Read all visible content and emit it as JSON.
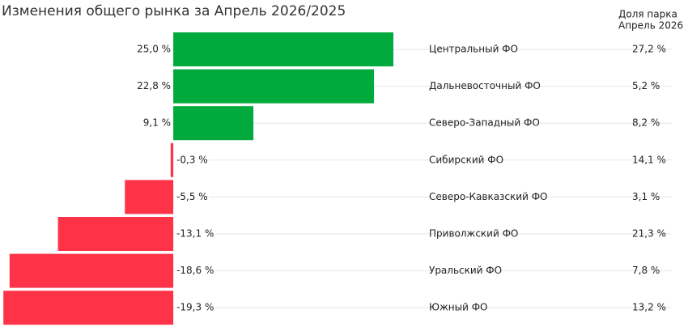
{
  "chart_data": {
    "type": "bar",
    "orientation": "horizontal",
    "title": "Изменения общего рынка за Апрель 2026/2025",
    "categories": [
      "Центральный ФО",
      "Дальневосточный ФО",
      "Северо-Западный ФО",
      "Сибирский ФО",
      "Северо-Кавказский ФО",
      "Приволжский ФО",
      "Уральский ФО",
      "Южный ФО"
    ],
    "values": [
      25.0,
      22.8,
      9.1,
      -0.3,
      -5.5,
      -13.1,
      -18.6,
      -19.3
    ],
    "value_labels": [
      "25,0 %",
      "22,8 %",
      "9,1 %",
      "-0,3 %",
      "-5,5 %",
      "-13,1 %",
      "-18,6 %",
      "-19,3 %"
    ],
    "positive_color": "#00aa3c",
    "negative_color": "#ff3347",
    "xlim": [
      -19.5,
      25
    ],
    "share": {
      "title": [
        "Доля парка",
        "Апрель 2026"
      ],
      "values": [
        27.2,
        5.2,
        8.2,
        14.1,
        3.1,
        21.3,
        7.8,
        13.2
      ],
      "value_labels": [
        "27,2 %",
        "5,2 %",
        "8,2 %",
        "14,1 %",
        "3,1 %",
        "21,3 %",
        "7,8 %",
        "13,2 %"
      ]
    }
  }
}
